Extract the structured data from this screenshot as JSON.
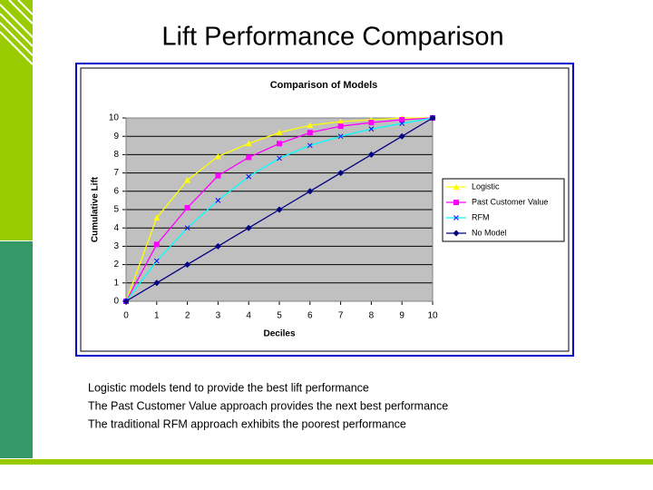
{
  "slide": {
    "title": "Lift Performance Comparison",
    "notes": [
      "Logistic models tend to provide the best lift performance",
      "The Past Customer Value approach provides the next best performance",
      "The traditional RFM approach exhibits the poorest performance"
    ]
  },
  "chart_data": {
    "type": "line",
    "title": "Comparison of Models",
    "x_label": "Deciles",
    "y_label": "Cumulative Lift",
    "x": [
      0,
      1,
      2,
      3,
      4,
      5,
      6,
      7,
      8,
      9,
      10
    ],
    "series": [
      {
        "name": "Logistic",
        "color": "#ffff00",
        "marker": "triangle",
        "values": [
          0,
          4.55,
          6.6,
          7.9,
          8.6,
          9.2,
          9.6,
          9.8,
          9.9,
          10,
          10
        ]
      },
      {
        "name": "Past Customer Value",
        "color": "#ff00ff",
        "marker": "square",
        "values": [
          0,
          3.1,
          5.1,
          6.85,
          7.85,
          8.6,
          9.2,
          9.55,
          9.75,
          9.9,
          10
        ]
      },
      {
        "name": "RFM",
        "color": "#00ffff",
        "marker": "x",
        "values": [
          0,
          2.2,
          4.0,
          5.5,
          6.8,
          7.8,
          8.5,
          9.0,
          9.4,
          9.7,
          10
        ]
      },
      {
        "name": "No Model",
        "color": "#000080",
        "marker": "diamond",
        "values": [
          0,
          1,
          2,
          3,
          4,
          5,
          6,
          7,
          8,
          9,
          10
        ]
      }
    ],
    "xlim": [
      0,
      10
    ],
    "xticks": [
      0,
      1,
      2,
      3,
      4,
      5,
      6,
      7,
      8,
      9,
      10
    ],
    "ylim": [
      0,
      10
    ],
    "yticks": [
      0,
      1,
      2,
      3,
      4,
      5,
      6,
      7,
      8,
      9,
      10
    ],
    "grid": true,
    "legend": "right"
  }
}
